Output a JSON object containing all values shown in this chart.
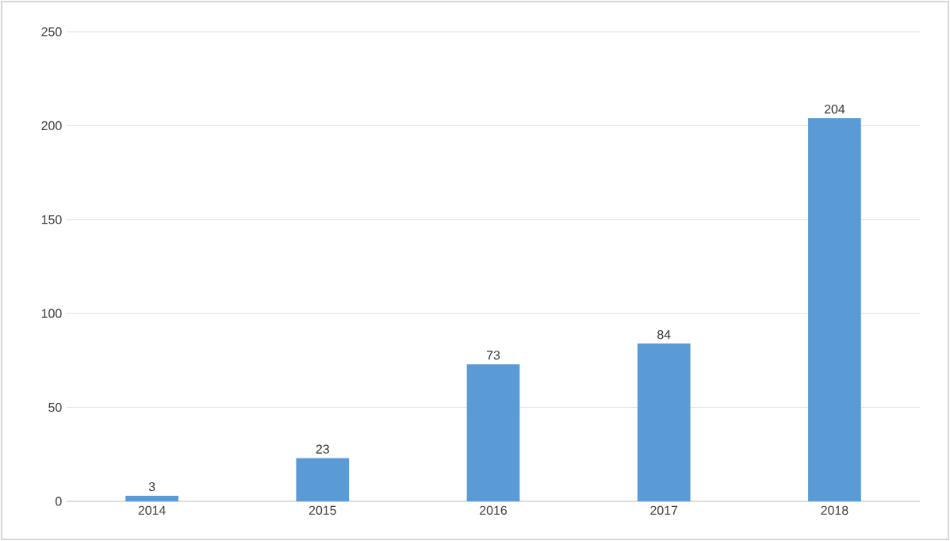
{
  "chart_data": {
    "type": "bar",
    "categories": [
      "2014",
      "2015",
      "2016",
      "2017",
      "2018"
    ],
    "values": [
      3,
      23,
      73,
      84,
      204
    ],
    "color": "#5b9bd5",
    "ylim": [
      0,
      250
    ],
    "yticks": [
      0,
      50,
      100,
      150,
      200,
      250
    ],
    "grid": "y",
    "data_labels": true
  }
}
